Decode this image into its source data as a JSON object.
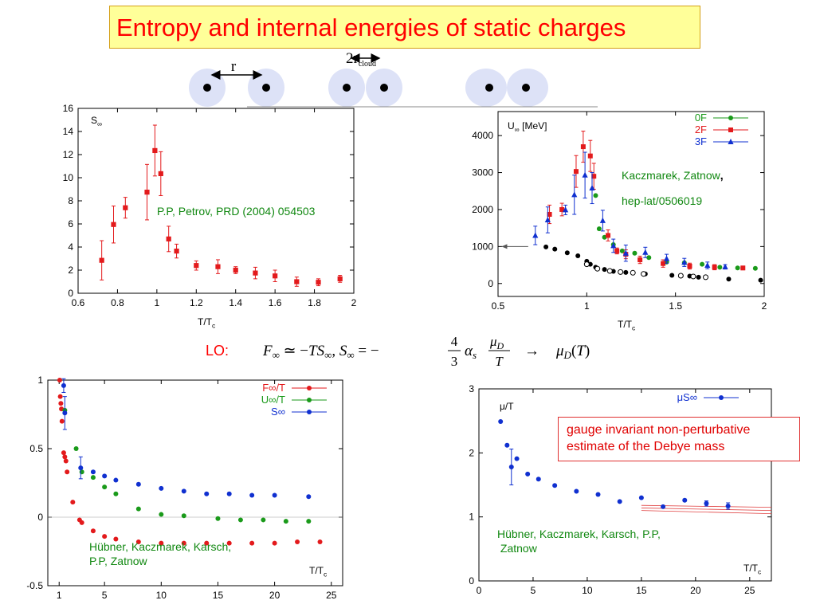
{
  "header": {
    "title": "Entropy and internal energies of static charges"
  },
  "diagram": {
    "r_label": "r",
    "cloud_label_main": "2r",
    "cloud_label_sub": "cloud"
  },
  "formula": {
    "prefix": "LO:"
  },
  "callout": {
    "line1": "gauge invariant non-perturbative",
    "line2": "estimate of the Debye mass"
  },
  "notes": {
    "tl": "P.P, Petrov, PRD (2004) 054503",
    "tr1": "Kaczmarek, Zatnow",
    "tr1_suffix": ",",
    "tr2": "hep-lat/0506019",
    "bl1": "Hübner, Kaczmarek, Karsch,",
    "bl2": "P.P,   Zatnow",
    "br1": "Hübner, Kaczmarek, Karsch, P.P,",
    "br2": " Zatnow"
  },
  "colors": {
    "red": "#e31a1c",
    "green": "#1a9a1a",
    "blue": "#1030d0",
    "black": "#000000",
    "accent": "#ff0000",
    "cloud": "#dde2f7"
  },
  "chart_data": [
    {
      "id": "tl",
      "type": "scatter",
      "ylabel": "S",
      "ylabel_sub": "∞",
      "xlabel": "T/T",
      "xlabel_sub": "c",
      "xlim": [
        0.6,
        2
      ],
      "ylim": [
        0,
        16
      ],
      "xticks": [
        0.6,
        0.8,
        1,
        1.2,
        1.4,
        1.6,
        1.8,
        2
      ],
      "yticks": [
        0,
        2,
        4,
        6,
        8,
        10,
        12,
        14,
        16
      ],
      "series": [
        {
          "color": "red",
          "marker": "square",
          "points": [
            [
              0.72,
              2.85,
              1.7
            ],
            [
              0.78,
              5.95,
              1.6
            ],
            [
              0.84,
              7.4,
              0.9
            ],
            [
              0.95,
              8.75,
              2.4
            ],
            [
              0.99,
              12.35,
              2.2
            ],
            [
              1.02,
              10.35,
              1.9
            ],
            [
              1.06,
              4.7,
              1.1
            ],
            [
              1.1,
              3.65,
              0.6
            ],
            [
              1.2,
              2.4,
              0.4
            ],
            [
              1.31,
              2.3,
              0.6
            ],
            [
              1.4,
              2.0,
              0.3
            ],
            [
              1.5,
              1.75,
              0.5
            ],
            [
              1.6,
              1.5,
              0.5
            ],
            [
              1.71,
              1.0,
              0.4
            ],
            [
              1.82,
              0.95,
              0.3
            ],
            [
              1.93,
              1.25,
              0.3
            ]
          ]
        }
      ]
    },
    {
      "id": "tr",
      "type": "scatter",
      "ylabel": "U",
      "ylabel_sub": "∞",
      "ylabel_unit": "[MeV]",
      "xlabel": "T/T",
      "xlabel_sub": "c",
      "xlim": [
        0.5,
        2
      ],
      "ylim": [
        -350,
        4650
      ],
      "xticks": [
        0.5,
        1,
        1.5,
        2
      ],
      "yticks": [
        0,
        1000,
        2000,
        3000,
        4000
      ],
      "legend": [
        "0F",
        "2F",
        "3F"
      ],
      "legend_position": "top-right",
      "series": [
        {
          "name": "0F",
          "color": "green",
          "marker": "circle",
          "points": [
            [
              1.05,
              2380,
              0
            ],
            [
              1.07,
              1480,
              0
            ],
            [
              1.1,
              1250,
              0
            ],
            [
              1.15,
              1050,
              0
            ],
            [
              1.2,
              880,
              0
            ],
            [
              1.27,
              820,
              0
            ],
            [
              1.35,
              700,
              0
            ],
            [
              1.45,
              580,
              0
            ],
            [
              1.55,
              560,
              0
            ],
            [
              1.65,
              520,
              0
            ],
            [
              1.75,
              440,
              0
            ],
            [
              1.85,
              420,
              0
            ],
            [
              1.95,
              410,
              0
            ]
          ]
        },
        {
          "name": "2F",
          "color": "red",
          "marker": "square",
          "points": [
            [
              0.79,
              1870,
              250
            ],
            [
              0.86,
              2000,
              170
            ],
            [
              0.94,
              3030,
              430
            ],
            [
              0.98,
              3700,
              420
            ],
            [
              1.02,
              3450,
              420
            ],
            [
              1.04,
              2900,
              350
            ],
            [
              1.12,
              1300,
              150
            ],
            [
              1.17,
              880,
              80
            ],
            [
              1.22,
              790,
              120
            ],
            [
              1.3,
              640,
              100
            ],
            [
              1.43,
              540,
              100
            ],
            [
              1.58,
              470,
              80
            ],
            [
              1.72,
              440,
              70
            ],
            [
              1.88,
              420,
              50
            ]
          ]
        },
        {
          "name": "3F",
          "color": "blue",
          "marker": "triangle",
          "points": [
            [
              0.71,
              1300,
              250
            ],
            [
              0.78,
              1720,
              350
            ],
            [
              0.88,
              1990,
              130
            ],
            [
              0.93,
              2400,
              530
            ],
            [
              0.99,
              2930,
              620
            ],
            [
              1.03,
              2580,
              420
            ],
            [
              1.09,
              1700,
              280
            ],
            [
              1.15,
              1020,
              180
            ],
            [
              1.22,
              820,
              220
            ],
            [
              1.33,
              840,
              140
            ],
            [
              1.45,
              670,
              120
            ],
            [
              1.55,
              570,
              110
            ],
            [
              1.68,
              490,
              90
            ],
            [
              1.78,
              450,
              60
            ]
          ]
        },
        {
          "color": "black",
          "marker": "circle",
          "points": [
            [
              0.77,
              990,
              0
            ],
            [
              0.82,
              930,
              0
            ],
            [
              0.89,
              830,
              0
            ],
            [
              0.95,
              750,
              0
            ],
            [
              1.0,
              600,
              0
            ],
            [
              1.02,
              520,
              0
            ],
            [
              1.05,
              440,
              0
            ],
            [
              1.1,
              380,
              0
            ],
            [
              1.15,
              330,
              0
            ],
            [
              1.22,
              300,
              0
            ],
            [
              1.33,
              260,
              0
            ],
            [
              1.48,
              220,
              0
            ],
            [
              1.58,
              200,
              0
            ],
            [
              1.63,
              170,
              0
            ],
            [
              1.8,
              120,
              0
            ],
            [
              1.98,
              90,
              0
            ]
          ]
        },
        {
          "color": "black",
          "marker": "open-circle",
          "points": [
            [
              1.0,
              520,
              0
            ],
            [
              1.06,
              400,
              0
            ],
            [
              1.13,
              340,
              0
            ],
            [
              1.19,
              310,
              0
            ],
            [
              1.26,
              290,
              0
            ],
            [
              1.32,
              260,
              0
            ],
            [
              1.53,
              210,
              0
            ],
            [
              1.6,
              190,
              0
            ],
            [
              1.67,
              170,
              0
            ]
          ]
        }
      ]
    },
    {
      "id": "bl",
      "type": "scatter",
      "xlabel": "T/T",
      "xlabel_sub": "c",
      "xlim": [
        0,
        26
      ],
      "ylim": [
        -0.5,
        1
      ],
      "xticks": [
        1,
        5,
        10,
        15,
        20,
        25
      ],
      "yticks": [
        -0.5,
        0,
        0.5,
        1
      ],
      "legend": [
        "F∞/T",
        "U∞/T",
        "S∞"
      ],
      "legend_position": "top-right",
      "series": [
        {
          "name": "F∞/T",
          "color": "red",
          "marker": "circle",
          "points": [
            [
              1.05,
              1.0,
              0
            ],
            [
              1.1,
              0.88,
              0
            ],
            [
              1.15,
              0.83,
              0
            ],
            [
              1.2,
              0.79,
              0
            ],
            [
              1.25,
              0.7,
              0
            ],
            [
              1.4,
              0.47,
              0
            ],
            [
              1.5,
              0.44,
              0
            ],
            [
              1.6,
              0.41,
              0
            ],
            [
              1.7,
              0.33,
              0
            ],
            [
              2.2,
              0.11,
              0
            ],
            [
              2.8,
              -0.02,
              0
            ],
            [
              3.0,
              -0.04,
              0
            ],
            [
              4.0,
              -0.1,
              0
            ],
            [
              5.0,
              -0.14,
              0
            ],
            [
              6.0,
              -0.16,
              0
            ],
            [
              8.0,
              -0.18,
              0
            ],
            [
              10.0,
              -0.19,
              0
            ],
            [
              12.0,
              -0.19,
              0
            ],
            [
              14.0,
              -0.19,
              0
            ],
            [
              16.0,
              -0.19,
              0
            ],
            [
              18.0,
              -0.19,
              0
            ],
            [
              20.0,
              -0.19,
              0
            ],
            [
              22.0,
              -0.18,
              0
            ],
            [
              24.0,
              -0.18,
              0
            ]
          ]
        },
        {
          "name": "U∞/T",
          "color": "green",
          "marker": "circle",
          "points": [
            [
              1.5,
              0.78,
              0
            ],
            [
              2.5,
              0.5,
              0
            ],
            [
              3.0,
              0.33,
              0
            ],
            [
              4.0,
              0.29,
              0
            ],
            [
              5.0,
              0.22,
              0
            ],
            [
              6.0,
              0.17,
              0
            ],
            [
              8.0,
              0.06,
              0
            ],
            [
              10.0,
              0.02,
              0
            ],
            [
              12.0,
              0.01,
              0
            ],
            [
              15.0,
              -0.01,
              0
            ],
            [
              17.0,
              -0.02,
              0
            ],
            [
              19.0,
              -0.02,
              0
            ],
            [
              21.0,
              -0.03,
              0
            ],
            [
              23.0,
              -0.03,
              0
            ]
          ]
        },
        {
          "name": "S∞",
          "color": "blue",
          "marker": "circle",
          "points": [
            [
              1.4,
              0.96,
              0.05
            ],
            [
              1.5,
              0.76,
              0.12
            ],
            [
              2.9,
              0.36,
              0.08
            ],
            [
              4.0,
              0.33,
              0
            ],
            [
              5.0,
              0.3,
              0
            ],
            [
              6.0,
              0.27,
              0
            ],
            [
              8.0,
              0.24,
              0
            ],
            [
              10.0,
              0.21,
              0
            ],
            [
              12.0,
              0.19,
              0
            ],
            [
              14.0,
              0.17,
              0
            ],
            [
              16.0,
              0.17,
              0
            ],
            [
              18.0,
              0.16,
              0
            ],
            [
              20.0,
              0.16,
              0
            ],
            [
              23.0,
              0.15,
              0
            ]
          ]
        }
      ]
    },
    {
      "id": "br",
      "type": "scatter",
      "ylabel": "μ/T",
      "xlabel": "T/T",
      "xlabel_sub": "c",
      "xlim": [
        0,
        27
      ],
      "ylim": [
        0,
        3
      ],
      "xticks": [
        0,
        5,
        10,
        15,
        20,
        25
      ],
      "yticks": [
        0,
        1,
        2,
        3
      ],
      "legend": [
        "μS∞"
      ],
      "legend_position": "top-right",
      "series": [
        {
          "name": "μS∞",
          "color": "blue",
          "marker": "circle",
          "points": [
            [
              2.0,
              2.49,
              0
            ],
            [
              2.6,
              2.12,
              0
            ],
            [
              3.0,
              1.78,
              0.28
            ],
            [
              3.5,
              1.91,
              0
            ],
            [
              4.5,
              1.67,
              0
            ],
            [
              5.5,
              1.59,
              0
            ],
            [
              7.0,
              1.49,
              0
            ],
            [
              9.0,
              1.4,
              0
            ],
            [
              11.0,
              1.35,
              0
            ],
            [
              13.0,
              1.24,
              0
            ],
            [
              15.0,
              1.3,
              0
            ],
            [
              17.0,
              1.16,
              0
            ],
            [
              19.0,
              1.26,
              0
            ],
            [
              21.0,
              1.21,
              0.04
            ],
            [
              23.0,
              1.17,
              0.05
            ]
          ]
        }
      ]
    }
  ]
}
